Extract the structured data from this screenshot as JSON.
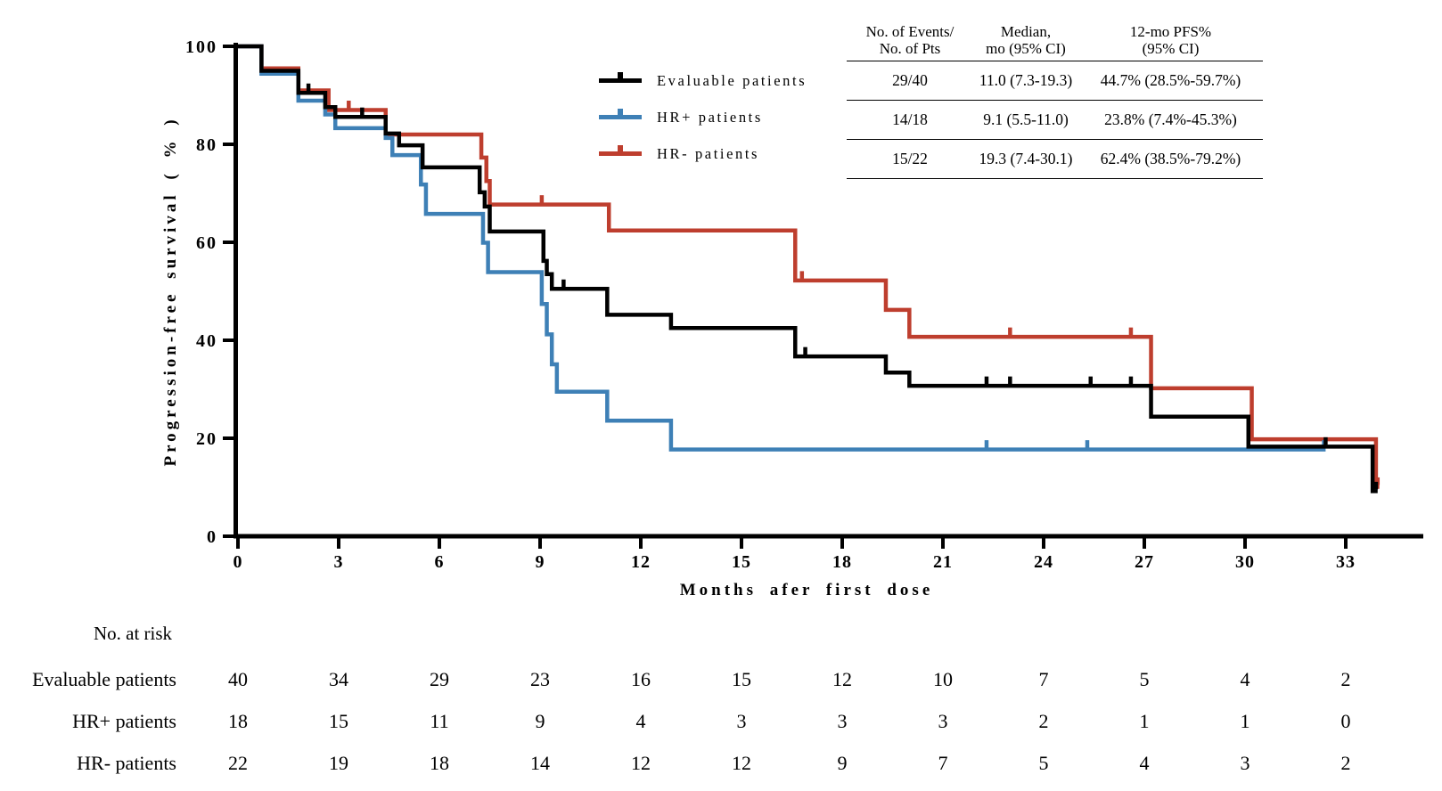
{
  "axes": {
    "x": {
      "title": "Months afer first dose",
      "ticks": [
        0,
        3,
        6,
        9,
        12,
        15,
        18,
        21,
        24,
        27,
        30,
        33
      ],
      "min": 0,
      "max": 35
    },
    "y": {
      "title": "Progression-free survival ( % )",
      "ticks": [
        0,
        20,
        40,
        60,
        80,
        100
      ],
      "min": 0,
      "max": 100
    }
  },
  "legend": {
    "items": [
      {
        "label": "Evaluable patients",
        "color": "#000000"
      },
      {
        "label": "HR+ patients",
        "color": "#3E80B6"
      },
      {
        "label": "HR- patients",
        "color": "#BE3E2E"
      }
    ]
  },
  "stats_table": {
    "headers": [
      {
        "line1": "No. of Events/",
        "line2": "No. of Pts"
      },
      {
        "line1": "Median,",
        "line2": "mo (95% CI)"
      },
      {
        "line1": "12-mo PFS%",
        "line2": "(95% CI)"
      }
    ],
    "rows": [
      [
        "29/40",
        "11.0 (7.3-19.3)",
        "44.7% (28.5%-59.7%)"
      ],
      [
        "14/18",
        "9.1 (5.5-11.0)",
        "23.8% (7.4%-45.3%)"
      ],
      [
        "15/22",
        "19.3 (7.4-30.1)",
        "62.4% (38.5%-79.2%)"
      ]
    ]
  },
  "risk_table": {
    "title": "No. at risk",
    "months": [
      0,
      3,
      6,
      9,
      12,
      15,
      18,
      21,
      24,
      27,
      30,
      33
    ],
    "rows": [
      {
        "label": "Evaluable patients",
        "counts": [
          40,
          34,
          29,
          23,
          16,
          15,
          12,
          10,
          7,
          5,
          4,
          2
        ]
      },
      {
        "label": "HR+ patients",
        "counts": [
          18,
          15,
          11,
          9,
          4,
          3,
          3,
          3,
          2,
          1,
          1,
          0
        ]
      },
      {
        "label": "HR- patients",
        "counts": [
          22,
          19,
          18,
          14,
          12,
          12,
          9,
          7,
          5,
          4,
          3,
          2
        ]
      }
    ]
  },
  "chart_data": {
    "type": "line",
    "subtype": "kaplan-meier-step",
    "title": "",
    "xlabel": "Months afer first dose",
    "ylabel": "Progression-free survival ( % )",
    "xlim": [
      0,
      35
    ],
    "ylim": [
      0,
      100
    ],
    "x_ticks": [
      0,
      3,
      6,
      9,
      12,
      15,
      18,
      21,
      24,
      27,
      30,
      33
    ],
    "y_ticks": [
      0,
      20,
      40,
      60,
      80,
      100
    ],
    "grid": false,
    "legend_position": "upper-center-left",
    "series": [
      {
        "name": "Evaluable patients",
        "color": "#000000",
        "n_events": "29/40",
        "median_mo": "11.0 (7.3-19.3)",
        "pfs_12mo": "44.7% (28.5%-59.7%)",
        "steps": [
          [
            0,
            100
          ],
          [
            0.7,
            95.0
          ],
          [
            1.8,
            90.5
          ],
          [
            2.6,
            87.6
          ],
          [
            2.9,
            85.6
          ],
          [
            4.4,
            82.2
          ],
          [
            4.8,
            79.8
          ],
          [
            5.5,
            75.3
          ],
          [
            7.2,
            70.2
          ],
          [
            7.35,
            67.3
          ],
          [
            7.5,
            62.2
          ],
          [
            9.1,
            56.2
          ],
          [
            9.2,
            53.5
          ],
          [
            9.35,
            50.5
          ],
          [
            11.0,
            45.2
          ],
          [
            12.9,
            42.5
          ],
          [
            16.6,
            36.7
          ],
          [
            19.3,
            33.4
          ],
          [
            20.0,
            30.7
          ],
          [
            27.2,
            24.4
          ],
          [
            30.1,
            18.3
          ],
          [
            33.8,
            9.2
          ]
        ],
        "end": 33.95,
        "censors": [
          [
            2.1,
            90.5
          ],
          [
            3.7,
            85.6
          ],
          [
            9.7,
            50.5
          ],
          [
            16.9,
            36.7
          ],
          [
            22.3,
            30.7
          ],
          [
            23.0,
            30.7
          ],
          [
            25.4,
            30.7
          ],
          [
            26.6,
            30.7
          ],
          [
            32.4,
            18.3
          ],
          [
            33.9,
            9.2
          ]
        ]
      },
      {
        "name": "HR+ patients",
        "color": "#3E80B6",
        "n_events": "14/18",
        "median_mo": "9.1 (5.5-11.0)",
        "pfs_12mo": "23.8% (7.4%-45.3%)",
        "steps": [
          [
            0,
            100
          ],
          [
            0.7,
            94.4
          ],
          [
            1.8,
            88.9
          ],
          [
            2.6,
            86.1
          ],
          [
            2.9,
            83.3
          ],
          [
            4.4,
            81.3
          ],
          [
            4.6,
            77.8
          ],
          [
            5.45,
            71.8
          ],
          [
            5.6,
            65.8
          ],
          [
            7.3,
            59.9
          ],
          [
            7.45,
            53.9
          ],
          [
            9.05,
            47.4
          ],
          [
            9.2,
            41.2
          ],
          [
            9.35,
            35.1
          ],
          [
            9.5,
            29.5
          ],
          [
            11.0,
            23.6
          ],
          [
            12.9,
            17.7
          ]
        ],
        "end": 32.4,
        "censors": [
          [
            22.3,
            17.7
          ],
          [
            25.3,
            17.7
          ],
          [
            32.35,
            17.7
          ]
        ]
      },
      {
        "name": "HR- patients",
        "color": "#BE3E2E",
        "n_events": "15/22",
        "median_mo": "19.3 (7.4-30.1)",
        "pfs_12mo": "62.4% (38.5%-79.2%)",
        "steps": [
          [
            0,
            100
          ],
          [
            0.7,
            95.5
          ],
          [
            1.8,
            91.0
          ],
          [
            2.7,
            87.0
          ],
          [
            4.4,
            82.0
          ],
          [
            7.25,
            77.3
          ],
          [
            7.4,
            72.5
          ],
          [
            7.5,
            67.7
          ],
          [
            11.05,
            62.4
          ],
          [
            16.6,
            52.2
          ],
          [
            19.3,
            46.2
          ],
          [
            20.0,
            40.7
          ],
          [
            27.2,
            30.2
          ],
          [
            30.2,
            19.8
          ],
          [
            33.9,
            10.1
          ]
        ],
        "end": 34.0,
        "censors": [
          [
            3.3,
            87.0
          ],
          [
            9.05,
            67.7
          ],
          [
            16.8,
            52.2
          ],
          [
            23.0,
            40.7
          ],
          [
            26.6,
            40.7
          ],
          [
            33.95,
            10.1
          ]
        ]
      }
    ]
  }
}
